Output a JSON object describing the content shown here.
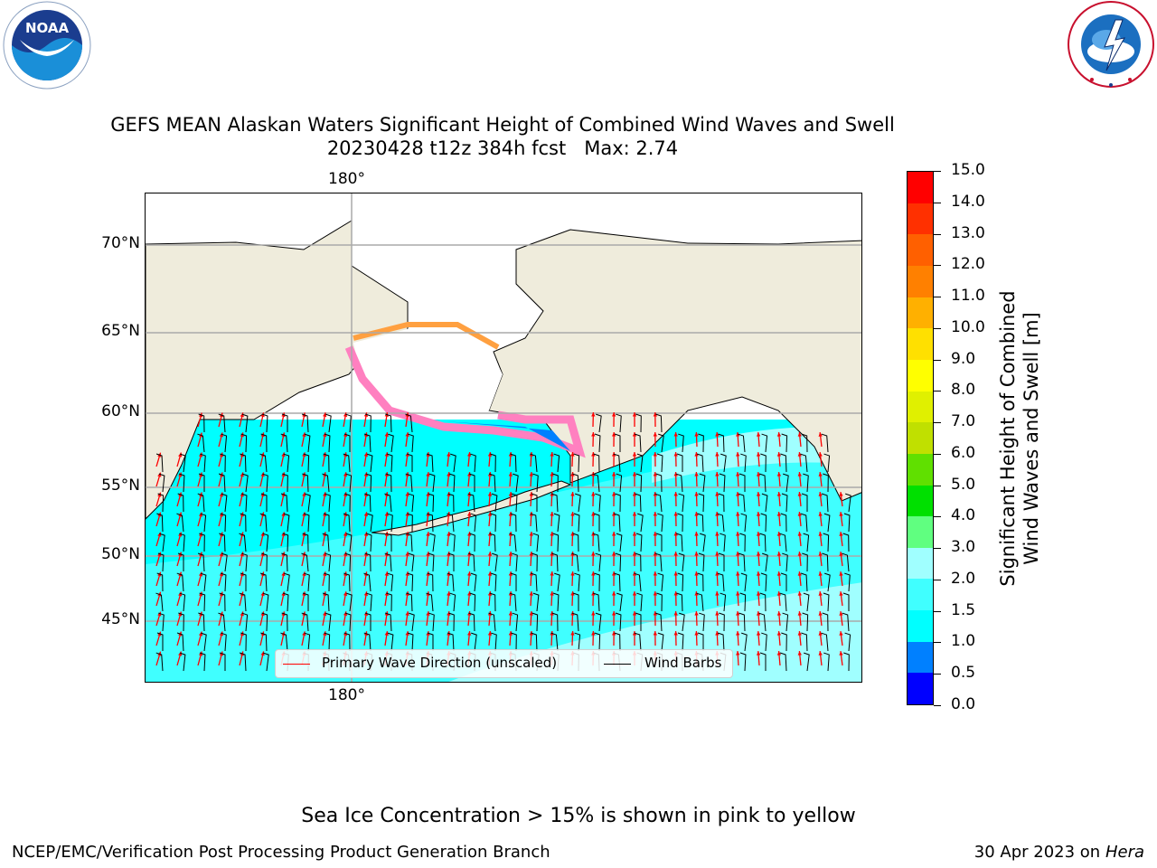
{
  "header": {
    "logo_left_text": "NOAA",
    "logo_left_ring": "NATIONAL OCEANIC AND ATMOSPHERIC ADMINISTRATION · U.S. DEPARTMENT OF COMMERCE",
    "logo_right_ring": "NATIONAL WEATHER SERVICE"
  },
  "title": {
    "line1": "GEFS MEAN Alaskan Waters Significant Height of Combined Wind Waves and Swell",
    "line2": "20230428 t12z 384h fcst   Max: 2.74"
  },
  "map": {
    "top_lon_label": "180°",
    "bottom_lon_label": "180°",
    "lat_labels": [
      "70°N",
      "65°N",
      "60°N",
      "55°N",
      "50°N",
      "45°N"
    ],
    "land_color": "#efecdc",
    "ocean_color": "#00ffff",
    "arrow_color": "#ff0000",
    "barb_color": "#000000",
    "ice_colors": [
      "#ff00ff",
      "#ff80c0",
      "#ffa040",
      "#ffff00"
    ]
  },
  "legend": {
    "wave_direction_label": "Primary Wave Direction (unscaled)",
    "wind_barbs_label": "Wind Barbs"
  },
  "colorbar": {
    "label_line1": "Significant Height of Combined",
    "label_line2": "Wind Waves and Swell [m]",
    "ticks": [
      "0.0",
      "0.5",
      "1.0",
      "1.5",
      "2.0",
      "3.0",
      "4.0",
      "5.0",
      "6.0",
      "7.0",
      "8.0",
      "9.0",
      "10.0",
      "11.0",
      "12.0",
      "13.0",
      "14.0",
      "15.0"
    ],
    "colors": [
      "#0000ff",
      "#0080ff",
      "#00ffff",
      "#40ffff",
      "#a0ffff",
      "#60ff80",
      "#00e000",
      "#60e000",
      "#c0e000",
      "#e0f000",
      "#ffff00",
      "#ffe000",
      "#ffb000",
      "#ff8000",
      "#ff6000",
      "#ff3000",
      "#ff0000"
    ]
  },
  "footer": {
    "ice_note": "Sea Ice Concentration > 15% is shown in pink to yellow",
    "credit": "NCEP/EMC/Verification Post Processing Product Generation Branch",
    "date": "30 Apr 2023 on",
    "host": "Hera"
  }
}
